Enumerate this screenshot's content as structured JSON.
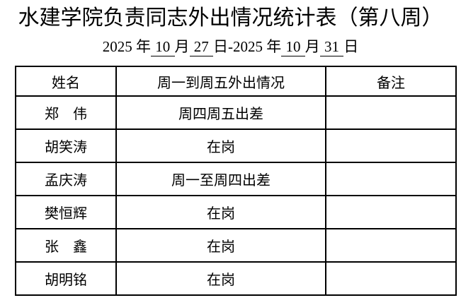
{
  "page": {
    "title": "水建学院负责同志外出情况统计表（第八周）",
    "subtitle_parts": [
      {
        "text": "2025 年",
        "underline": false
      },
      {
        "text": " 10 ",
        "underline": true
      },
      {
        "text": "月",
        "underline": false
      },
      {
        "text": " 27 ",
        "underline": true
      },
      {
        "text": "日-2025 年",
        "underline": false
      },
      {
        "text": " 10 ",
        "underline": true
      },
      {
        "text": "月",
        "underline": false
      },
      {
        "text": " 31 ",
        "underline": true
      },
      {
        "text": "日",
        "underline": false
      }
    ]
  },
  "table": {
    "headers": [
      "姓名",
      "周一到周五外出情况",
      "备注"
    ],
    "rows": [
      {
        "name": "郑　伟",
        "status": "周四周五出差",
        "remark": ""
      },
      {
        "name": "胡笑涛",
        "status": "在岗",
        "remark": ""
      },
      {
        "name": "孟庆涛",
        "status": "周一至周四出差",
        "remark": ""
      },
      {
        "name": "樊恒辉",
        "status": "在岗",
        "remark": ""
      },
      {
        "name": "张　鑫",
        "status": "在岗",
        "remark": ""
      },
      {
        "name": "胡明铭",
        "status": "在岗",
        "remark": ""
      }
    ]
  },
  "colors": {
    "text": "#000000",
    "background": "#ffffff",
    "border": "#000000"
  }
}
